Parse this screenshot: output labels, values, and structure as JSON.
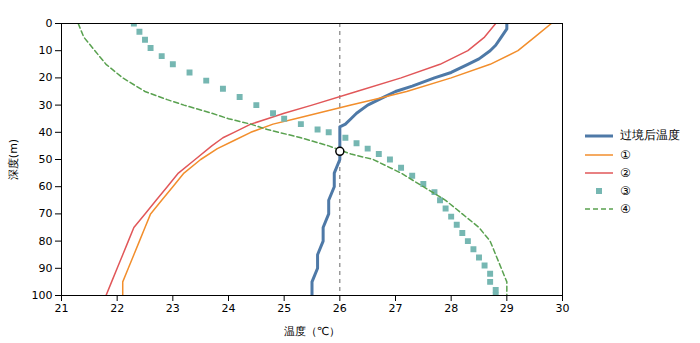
{
  "chart_data": {
    "type": "line",
    "xlabel": "温度（℃）",
    "ylabel": "深度(m)",
    "xlim": [
      21,
      30
    ],
    "ylim": [
      100,
      0
    ],
    "xticks": [
      21,
      22,
      23,
      24,
      25,
      26,
      27,
      28,
      29,
      30
    ],
    "yticks": [
      0,
      10,
      20,
      30,
      40,
      50,
      60,
      70,
      80,
      90,
      100
    ],
    "grid": false,
    "legend": "right",
    "series": [
      {
        "name": "过境后温度",
        "line_style": "solid",
        "x": [
          29.0,
          29.0,
          28.9,
          28.8,
          28.7,
          28.5,
          28.3,
          28.0,
          27.7,
          27.3,
          27.0,
          26.8,
          26.5,
          26.3,
          26.2,
          26.1,
          26.0,
          26.0,
          26.0,
          26.0,
          26.0,
          26.0,
          26.0,
          26.0,
          26.0,
          26.0,
          25.9,
          25.9,
          25.8,
          25.8,
          25.7,
          25.7,
          25.6,
          25.6,
          25.5,
          25.5
        ],
        "values": [
          0,
          2,
          5,
          8,
          10,
          13,
          15,
          18,
          20,
          23,
          25,
          27,
          30,
          33,
          35,
          37,
          38,
          39,
          40,
          41,
          42,
          43,
          44,
          45,
          47,
          50,
          55,
          60,
          65,
          70,
          75,
          80,
          85,
          90,
          95,
          100
        ]
      },
      {
        "name": "①",
        "line_style": "solid",
        "x": [
          29.8,
          29.5,
          29.2,
          28.7,
          28.0,
          27.2,
          26.6,
          26.2,
          25.6,
          25.2,
          24.8,
          24.4,
          24.1,
          23.8,
          23.5,
          23.2,
          23.0,
          22.8,
          22.6,
          22.5,
          22.4,
          22.3,
          22.2,
          22.1,
          22.1
        ],
        "values": [
          0,
          5,
          10,
          15,
          20,
          25,
          28,
          30,
          33,
          35,
          37,
          40,
          43,
          46,
          50,
          55,
          60,
          65,
          70,
          75,
          80,
          85,
          90,
          95,
          100
        ]
      },
      {
        "name": "②",
        "line_style": "solid",
        "x": [
          28.8,
          28.6,
          28.3,
          27.8,
          27.1,
          26.3,
          25.5,
          25.0,
          24.7,
          24.4,
          24.3,
          24.2,
          24.1,
          23.9,
          23.7,
          23.4,
          23.1,
          22.9,
          22.7,
          22.5,
          22.3,
          22.2,
          22.1,
          22.0,
          21.9,
          21.8
        ],
        "values": [
          0,
          5,
          10,
          15,
          20,
          25,
          30,
          33,
          35,
          37,
          38,
          39,
          40,
          42,
          45,
          50,
          55,
          60,
          65,
          70,
          75,
          80,
          85,
          90,
          95,
          100
        ]
      },
      {
        "name": "③",
        "line_style": "none",
        "marker": "square",
        "x": [
          22.3,
          22.4,
          22.5,
          22.6,
          22.8,
          23.0,
          23.3,
          23.6,
          23.9,
          24.2,
          24.5,
          24.8,
          25.0,
          25.3,
          25.6,
          25.8,
          26.1,
          26.3,
          26.5,
          26.7,
          26.9,
          27.1,
          27.3,
          27.5,
          27.7,
          27.8,
          27.9,
          28.0,
          28.1,
          28.2,
          28.3,
          28.4,
          28.5,
          28.6,
          28.7,
          28.7,
          28.8,
          28.8
        ],
        "values": [
          0,
          3,
          6,
          9,
          12,
          15,
          18,
          21,
          24,
          27,
          30,
          33,
          35,
          37,
          39,
          40,
          42,
          44,
          46,
          48,
          50,
          53,
          56,
          59,
          62,
          65,
          68,
          71,
          74,
          77,
          80,
          83,
          86,
          89,
          92,
          95,
          98,
          100
        ]
      },
      {
        "name": "④",
        "line_style": "dashed",
        "x": [
          21.3,
          21.4,
          21.6,
          21.8,
          22.1,
          22.5,
          22.9,
          23.2,
          23.7,
          24.0,
          24.4,
          24.7,
          24.9,
          25.3,
          25.8,
          26.2,
          26.6,
          27.1,
          27.5,
          27.9,
          28.2,
          28.5,
          28.7,
          28.8,
          28.9,
          29.0,
          29.0
        ],
        "values": [
          0,
          5,
          10,
          15,
          20,
          25,
          28,
          30,
          33,
          35,
          37,
          39,
          40,
          42,
          45,
          48,
          50,
          55,
          60,
          65,
          70,
          75,
          80,
          85,
          90,
          95,
          100
        ]
      }
    ],
    "vline": 26,
    "circle": {
      "x": 26,
      "y": 47
    }
  }
}
